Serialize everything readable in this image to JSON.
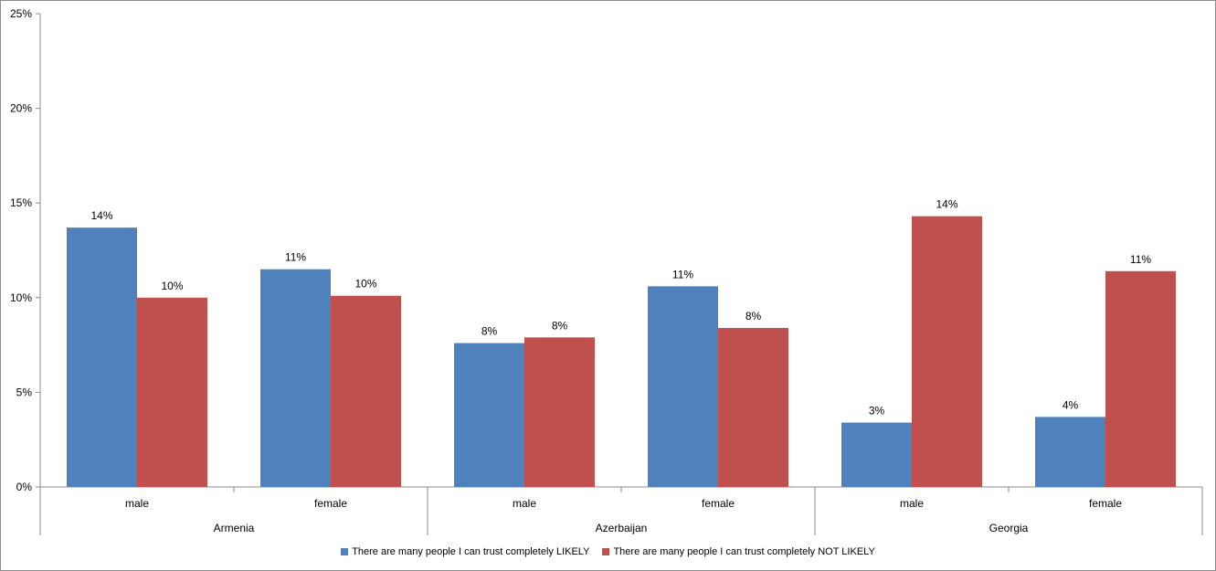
{
  "chart_data": {
    "type": "bar",
    "title": "",
    "xlabel": "",
    "ylabel": "",
    "ylim": [
      0,
      25
    ],
    "y_ticks": [
      "0%",
      "5%",
      "10%",
      "15%",
      "20%",
      "25%"
    ],
    "y_tick_values": [
      0,
      5,
      10,
      15,
      20,
      25
    ],
    "groups": [
      {
        "name": "Armenia",
        "categories": [
          "male",
          "female"
        ]
      },
      {
        "name": "Azerbaijan",
        "categories": [
          "male",
          "female"
        ]
      },
      {
        "name": "Georgia",
        "categories": [
          "male",
          "female"
        ]
      }
    ],
    "series": [
      {
        "name": "There are many people I can trust completely LIKELY",
        "color": "#4f81bd",
        "values": [
          13.7,
          11.5,
          7.6,
          10.6,
          3.4,
          3.7
        ],
        "labels": [
          "14%",
          "11%",
          "8%",
          "11%",
          "3%",
          "4%"
        ]
      },
      {
        "name": "There are many people I can trust completely NOT LIKELY",
        "color": "#c0504d",
        "values": [
          10.0,
          10.1,
          7.9,
          8.4,
          14.3,
          11.4
        ],
        "labels": [
          "10%",
          "10%",
          "8%",
          "8%",
          "14%",
          "11%"
        ]
      }
    ],
    "grid": false,
    "legend_position": "bottom"
  }
}
